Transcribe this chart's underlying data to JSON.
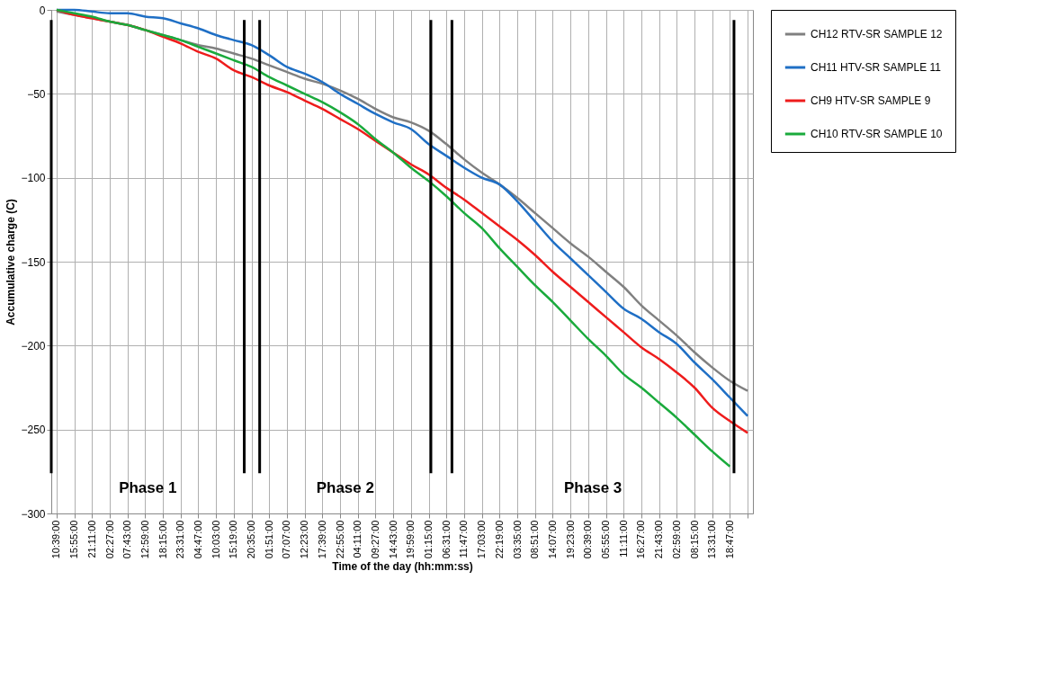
{
  "chart_data": {
    "type": "line",
    "xlabel": "Time of the day (hh:mm:ss)",
    "ylabel": "Accumulative charge (C)",
    "categories": [
      "10:39:00",
      "15:55:00",
      "21:11:00",
      "02:27:00",
      "07:43:00",
      "12:59:00",
      "18:15:00",
      "23:31:00",
      "04:47:00",
      "10:03:00",
      "15:19:00",
      "20:35:00",
      "01:51:00",
      "07:07:00",
      "12:23:00",
      "17:39:00",
      "22:55:00",
      "04:11:00",
      "09:27:00",
      "14:43:00",
      "19:59:00",
      "01:15:00",
      "06:31:00",
      "11:47:00",
      "17:03:00",
      "22:19:00",
      "03:35:00",
      "08:51:00",
      "14:07:00",
      "19:23:00",
      "00:39:00",
      "05:55:00",
      "11:11:00",
      "16:27:00",
      "21:43:00",
      "02:59:00",
      "08:15:00",
      "13:31:00",
      "18:47:00",
      null
    ],
    "series": [
      {
        "name": "CH12 RTV-SR SAMPLE 12",
        "color": "#808080",
        "values": [
          -1,
          -3,
          -5,
          -7,
          -9,
          -12,
          -15,
          -18,
          -21,
          -23,
          -26,
          -29,
          -33,
          -37,
          -41,
          -44,
          -48,
          -53,
          -59,
          -64,
          -67,
          -72,
          -80,
          -89,
          -97,
          -104,
          -112,
          -121,
          -130,
          -139,
          -147,
          -156,
          -165,
          -176,
          -185,
          -194,
          -204,
          -213,
          -221,
          -227
        ]
      },
      {
        "name": "CH11 HTV-SR SAMPLE 11",
        "color": "#1f6fc5",
        "values": [
          0,
          0,
          -1,
          -2,
          -2,
          -4,
          -5,
          -8,
          -11,
          -15,
          -18,
          -21,
          -27,
          -34,
          -38,
          -43,
          -50,
          -56,
          -62,
          -67,
          -71,
          -80,
          -87,
          -94,
          -100,
          -104,
          -114,
          -126,
          -138,
          -148,
          -158,
          -168,
          -178,
          -184,
          -192,
          -199,
          -210,
          -220,
          -231,
          -242
        ]
      },
      {
        "name": "CH9 HTV-SR SAMPLE 9",
        "color": "#ee1c1c",
        "values": [
          0,
          -3,
          -5,
          -7,
          -9,
          -12,
          -16,
          -20,
          -25,
          -29,
          -36,
          -40,
          -45,
          -49,
          -54,
          -59,
          -65,
          -71,
          -78,
          -85,
          -92,
          -98,
          -106,
          -113,
          -121,
          -129,
          -137,
          -146,
          -156,
          -165,
          -174,
          -183,
          -192,
          -201,
          -208,
          -216,
          -225,
          -237,
          -245,
          -252
        ]
      },
      {
        "name": "CH10 RTV-SR SAMPLE 10",
        "color": "#1aaa3c",
        "values": [
          0,
          -2,
          -4,
          -7,
          -9,
          -12,
          -15,
          -18,
          -22,
          -26,
          -30,
          -34,
          -40,
          -45,
          -50,
          -55,
          -61,
          -68,
          -77,
          -85,
          -94,
          -102,
          -111,
          -121,
          -130,
          -142,
          -153,
          -164,
          -174,
          -185,
          -196,
          -206,
          -217,
          -225,
          -234,
          -243,
          -253,
          -263,
          -272,
          null
        ]
      }
    ],
    "ylim": [
      -300,
      0
    ],
    "yticks": [
      -300,
      -250,
      -200,
      -150,
      -100,
      -50,
      0
    ],
    "grid": true,
    "legend": "right",
    "annotations": [
      "Phase 1",
      "Phase 2",
      "Phase 3"
    ]
  }
}
